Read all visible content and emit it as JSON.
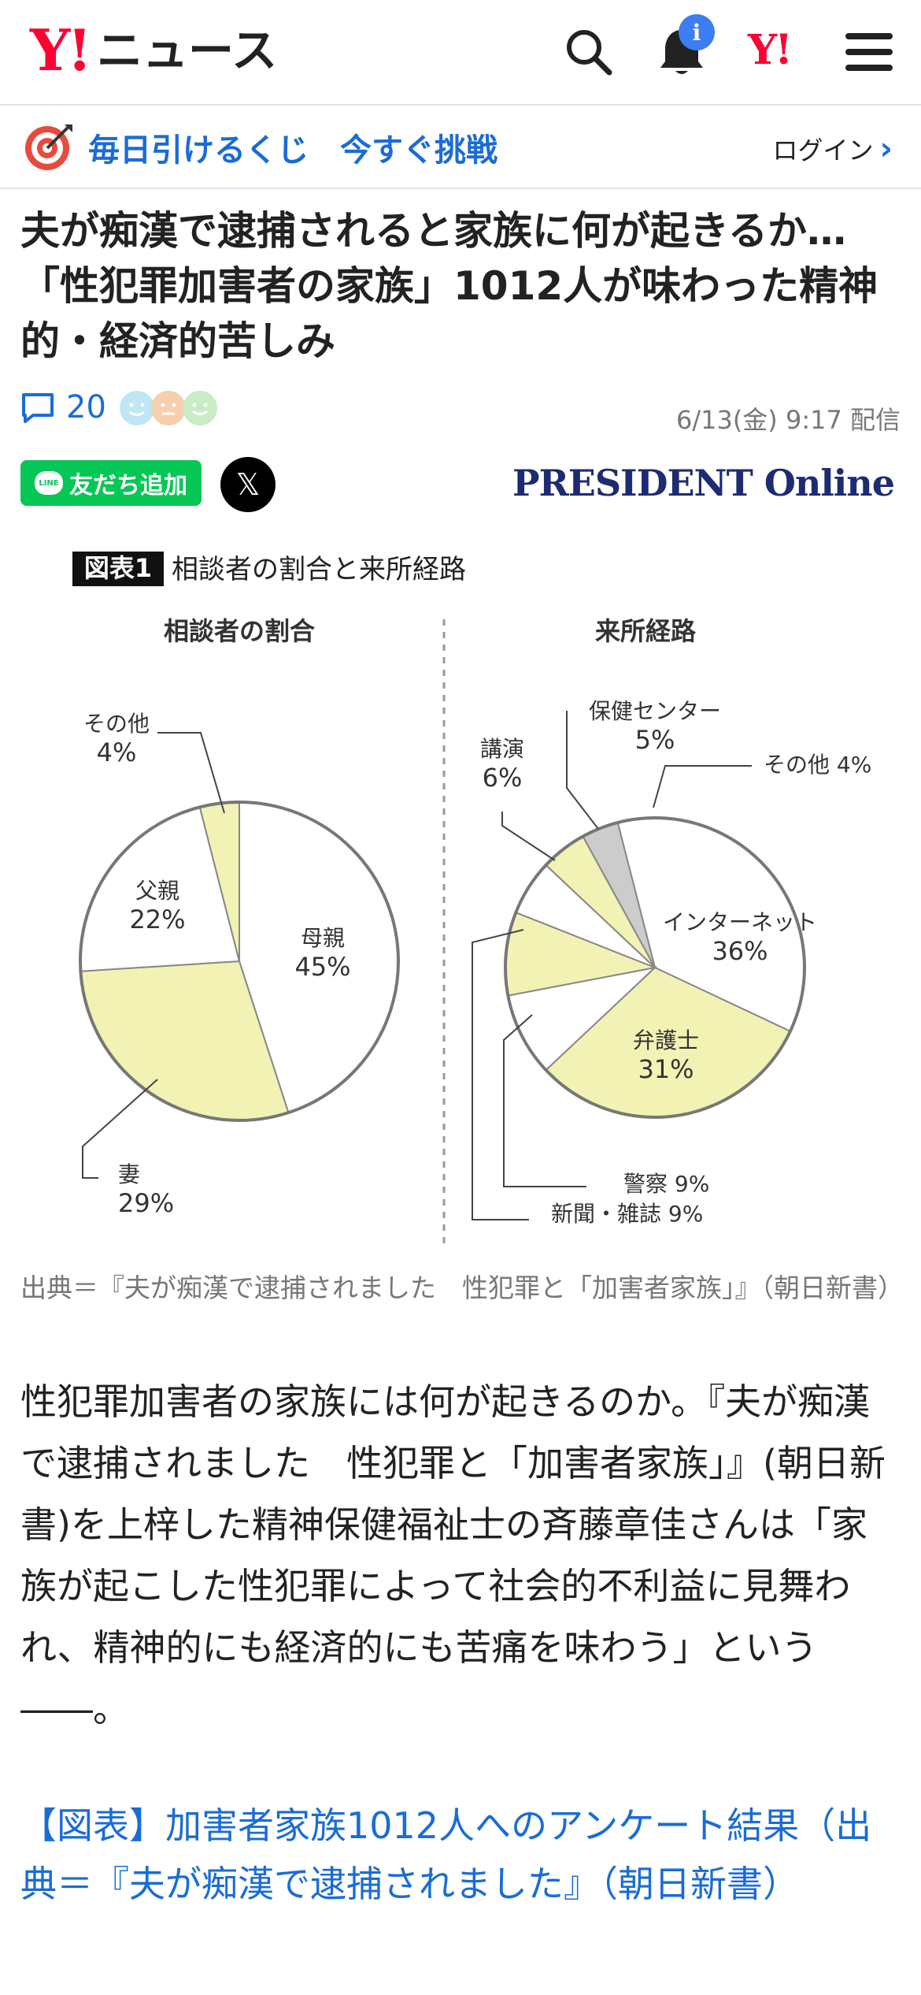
{
  "header": {
    "logo_y": "Y!",
    "logo_text": "ニュース",
    "notification_badge": "i",
    "yahoo_mark": "Y!"
  },
  "promo": {
    "text": "毎日引けるくじ　今すぐ挑戦",
    "login": "ログイン"
  },
  "article": {
    "title": "夫が痴漢で逮捕されると家族に何が起きるか…「性犯罪加害者の家族」1012人が味わった精神的・経済的苦しみ",
    "comment_count": "20",
    "date": "6/13(金) 9:17 配信",
    "line_button": "友だち追加",
    "line_logo": "LINE",
    "x_button": "𝕏",
    "provider": "PRESIDENT Online",
    "caption": "出典＝『夫が痴漢で逮捕されました　性犯罪と「加害者家族」』（朝日新書）",
    "body": "性犯罪加害者の家族には何が起きるのか。『夫が痴漢で逮捕されました　性犯罪と「加害者家族」』(朝日新書)を上梓した精神保健福祉士の斉藤章佳さんは「家族が起こした性犯罪によって社会的不利益に見舞われ、精神的にも経済的にも苦痛を味わう」という――。",
    "link": "【図表】加害者家族1012人へのアンケート結果（出典＝『夫が痴漢で逮捕されました』（朝日新書）"
  },
  "chart_data": [
    {
      "type": "pie",
      "figure_label": "図表1",
      "figure_title": "相談者の割合と来所経路",
      "title": "相談者の割合",
      "slices": [
        {
          "label": "母親",
          "value": 45,
          "value_label": "45%",
          "color": "#ffffff"
        },
        {
          "label": "妻",
          "value": 29,
          "value_label": "29%",
          "color": "#f2f2b4"
        },
        {
          "label": "父親",
          "value": 22,
          "value_label": "22%",
          "color": "#ffffff"
        },
        {
          "label": "その他",
          "value": 4,
          "value_label": "4%",
          "color": "#f2f2b4"
        }
      ]
    },
    {
      "type": "pie",
      "title": "来所経路",
      "slices": [
        {
          "label": "インターネット",
          "value": 36,
          "value_label": "36%",
          "color": "#ffffff"
        },
        {
          "label": "弁護士",
          "value": 31,
          "value_label": "31%",
          "color": "#f2f2b4"
        },
        {
          "label": "警察",
          "value": 9,
          "value_label": "9%",
          "color": "#ffffff"
        },
        {
          "label": "新聞・雑誌",
          "value": 9,
          "value_label": "9%",
          "color": "#f2f2b4"
        },
        {
          "label": "講演",
          "value": 6,
          "value_label": "6%",
          "color": "#ffffff"
        },
        {
          "label": "保健センター",
          "value": 5,
          "value_label": "5%",
          "color": "#f2f2b4"
        },
        {
          "label": "その他",
          "value": 4,
          "value_label": "4%",
          "color": "#cccccc"
        }
      ]
    }
  ]
}
